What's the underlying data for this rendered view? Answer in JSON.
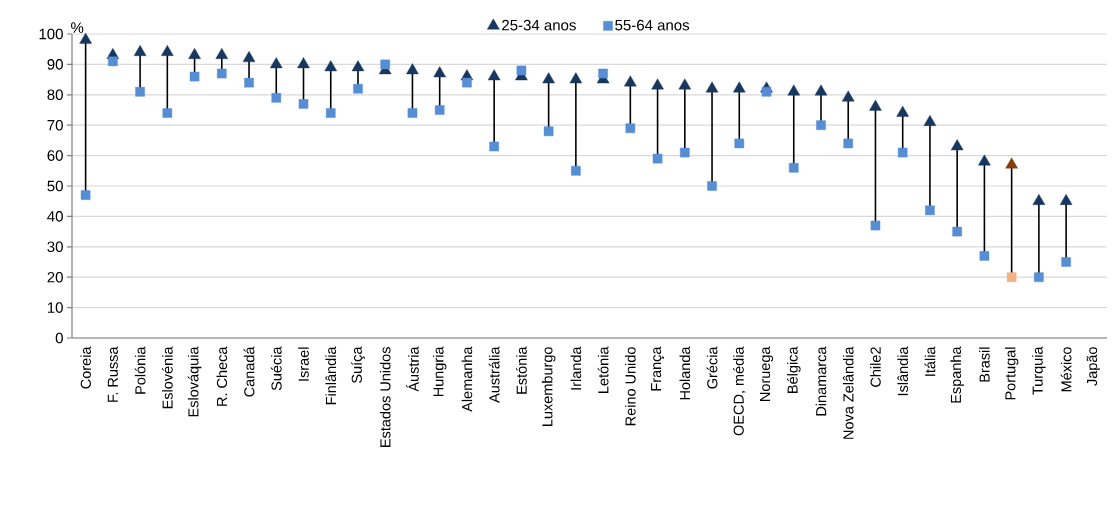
{
  "chart_data": {
    "type": "scatter",
    "ylabel": "%",
    "categories": [
      "Coreia",
      "F. Russa",
      "Polónia",
      "Eslovénia",
      "Eslováquia",
      "R. Checa",
      "Canadá",
      "Suécia",
      "Israel",
      "Finlândia",
      "Suíça",
      "Estados Unidos",
      "Áustria",
      "Hungria",
      "Alemanha",
      "Austrália",
      "Estónia",
      "Luxemburgo",
      "Irlanda",
      "Letónia",
      "Reino Unido",
      "França",
      "Holanda",
      "Grécia",
      "OECD, média",
      "Noruega",
      "Bélgica",
      "Dinamarca",
      "Nova Zelândia",
      "Chile2",
      "Islândia",
      "Itália",
      "Espanha",
      "Brasil",
      "Portugal",
      "Turquia",
      "México",
      "Japão"
    ],
    "series": [
      {
        "name": "25-34 anos",
        "marker": "triangle",
        "color": "#17375e",
        "colors": [
          "#17375e",
          "#17375e",
          "#17375e",
          "#17375e",
          "#17375e",
          "#17375e",
          "#17375e",
          "#17375e",
          "#17375e",
          "#17375e",
          "#17375e",
          "#17375e",
          "#17375e",
          "#17375e",
          "#17375e",
          "#17375e",
          "#17375e",
          "#17375e",
          "#17375e",
          "#17375e",
          "#17375e",
          "#17375e",
          "#17375e",
          "#17375e",
          "#17375e",
          "#17375e",
          "#17375e",
          "#17375e",
          "#17375e",
          "#17375e",
          "#17375e",
          "#17375e",
          "#17375e",
          "#17375e",
          "#843c0c",
          "#17375e",
          "#17375e",
          "#17375e"
        ],
        "values": [
          98,
          93,
          94,
          94,
          93,
          93,
          92,
          90,
          90,
          89,
          89,
          88,
          88,
          87,
          86,
          86,
          86,
          85,
          85,
          85,
          84,
          83,
          83,
          82,
          82,
          82,
          81,
          81,
          79,
          76,
          74,
          71,
          63,
          58,
          57,
          45,
          45,
          null
        ]
      },
      {
        "name": "55-64 anos",
        "marker": "square",
        "color": "#558ed5",
        "colors": [
          "#558ed5",
          "#558ed5",
          "#558ed5",
          "#558ed5",
          "#558ed5",
          "#558ed5",
          "#558ed5",
          "#558ed5",
          "#558ed5",
          "#558ed5",
          "#558ed5",
          "#558ed5",
          "#558ed5",
          "#558ed5",
          "#558ed5",
          "#558ed5",
          "#558ed5",
          "#558ed5",
          "#558ed5",
          "#558ed5",
          "#558ed5",
          "#558ed5",
          "#558ed5",
          "#558ed5",
          "#558ed5",
          "#558ed5",
          "#558ed5",
          "#558ed5",
          "#558ed5",
          "#558ed5",
          "#558ed5",
          "#558ed5",
          "#558ed5",
          "#558ed5",
          "#f4b183",
          "#558ed5",
          "#558ed5",
          "#558ed5"
        ],
        "values": [
          47,
          91,
          81,
          74,
          86,
          87,
          84,
          79,
          77,
          74,
          82,
          90,
          74,
          75,
          84,
          63,
          88,
          68,
          55,
          87,
          69,
          59,
          61,
          50,
          64,
          81,
          56,
          70,
          64,
          37,
          61,
          42,
          35,
          27,
          20,
          20,
          25,
          null
        ]
      }
    ],
    "ylim": [
      0,
      100
    ],
    "yticks": [
      0,
      10,
      20,
      30,
      40,
      50,
      60,
      70,
      80,
      90,
      100
    ],
    "grid": "y",
    "legend": "top"
  }
}
